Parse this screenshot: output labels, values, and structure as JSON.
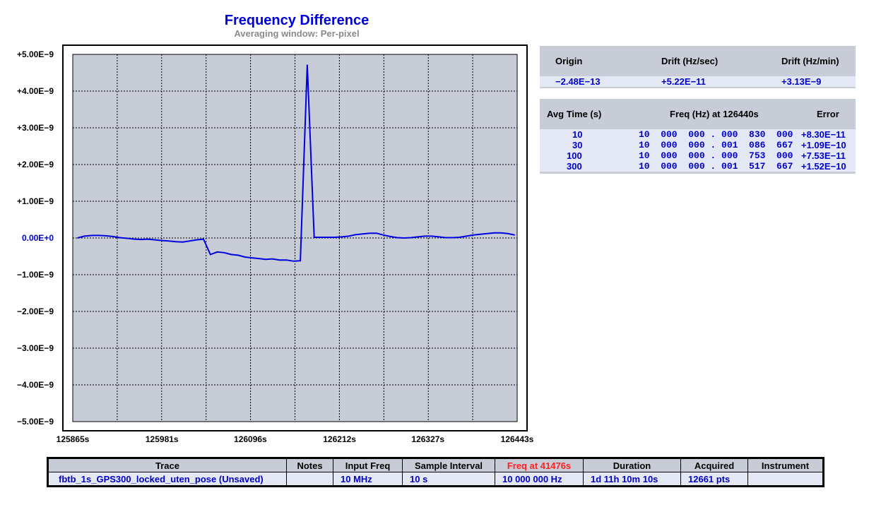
{
  "chart_data": {
    "type": "line",
    "title": "Frequency Difference",
    "subtitle": "Averaging window: Per-pixel",
    "xlabel": "",
    "ylabel": "",
    "xlim": [
      125865,
      126443
    ],
    "ylim": [
      -5e-09,
      5e-09
    ],
    "grid": true,
    "x_ticks": [
      "125865s",
      "125981s",
      "126096s",
      "126212s",
      "126327s",
      "126443s"
    ],
    "y_ticks": [
      "+5.00E−9",
      "+4.00E−9",
      "+3.00E−9",
      "+2.00E−9",
      "+1.00E−9",
      "0.00E+0",
      "−1.00E−9",
      "−2.00E−9",
      "−3.00E−9",
      "−4.00E−9",
      "−5.00E−9"
    ],
    "y_tick_values": [
      5e-09,
      4e-09,
      3e-09,
      2e-09,
      1e-09,
      0,
      -1e-09,
      -2e-09,
      -3e-09,
      -4e-09,
      -5e-09
    ],
    "x_tick_values": [
      125865,
      125981,
      126096,
      126212,
      126327,
      126443
    ],
    "series": [
      {
        "color": "#0000e0",
        "x": [
          125871,
          125880,
          125890,
          125899,
          125908,
          125917,
          125926,
          125936,
          125945,
          125954,
          125963,
          125972,
          125981,
          125990,
          125999,
          126008,
          126017,
          126026,
          126035,
          126044,
          126053,
          126062,
          126071,
          126080,
          126089,
          126098,
          126107,
          126116,
          126125,
          126134,
          126143,
          126152,
          126161,
          126170,
          126179,
          126188,
          126197,
          126206,
          126215,
          126224,
          126233,
          126242,
          126251,
          126260,
          126269,
          126278,
          126287,
          126296,
          126305,
          126314,
          126323,
          126332,
          126341,
          126350,
          126359,
          126368,
          126377,
          126386,
          126395,
          126404,
          126413,
          126422,
          126431,
          126440
        ],
        "y": [
          0.0,
          5e-11,
          7e-11,
          7e-11,
          6e-11,
          4e-11,
          1e-11,
          -1e-11,
          -3e-11,
          -4e-11,
          -3e-11,
          -5e-11,
          -7e-11,
          -8e-11,
          -1e-10,
          -1.1e-10,
          -8e-11,
          -5e-11,
          -3e-11,
          -4.5e-10,
          -3.8e-10,
          -4e-10,
          -4.5e-10,
          -4.7e-10,
          -5.2e-10,
          -5.4e-10,
          -5.6e-10,
          -5.8e-10,
          -5.7e-10,
          -6e-10,
          -6e-10,
          -6.3e-10,
          -6.2e-10,
          4.72e-09,
          2e-11,
          2e-11,
          2e-11,
          2e-11,
          3e-11,
          5e-11,
          9e-11,
          1.1e-10,
          1.3e-10,
          1.3e-10,
          8e-11,
          4e-11,
          1e-11,
          0.0,
          1e-11,
          3e-11,
          5e-11,
          5e-11,
          3e-11,
          1e-11,
          1e-11,
          2e-11,
          5e-11,
          8e-11,
          1e-10,
          1.2e-10,
          1.4e-10,
          1.4e-10,
          1.2e-10,
          8e-11
        ]
      }
    ]
  },
  "drift_panel": {
    "headers": [
      "Origin",
      "Drift (Hz/sec)",
      "Drift (Hz/min)"
    ],
    "values": [
      "−2.48E−13",
      "+5.22E−11",
      "+3.13E−9"
    ]
  },
  "avg_panel": {
    "headers": [
      "Avg Time (s)",
      "Freq (Hz) at 126440s",
      "Error"
    ],
    "rows": [
      {
        "avg": "10",
        "freq": "10  000  000 . 000  830  000",
        "err": "+8.30E−11"
      },
      {
        "avg": "30",
        "freq": "10  000  000 . 001  086  667",
        "err": "+1.09E−10"
      },
      {
        "avg": "100",
        "freq": "10  000  000 . 000  753  000",
        "err": "+7.53E−11"
      },
      {
        "avg": "300",
        "freq": "10  000  000 . 001  517  667",
        "err": "+1.52E−10"
      }
    ]
  },
  "trace_table": {
    "headers": [
      "Trace",
      "Notes",
      "Input Freq",
      "Sample Interval",
      "Freq at 41476s",
      "Duration",
      "Acquired",
      "Instrument"
    ],
    "row": [
      "fbtb_1s_GPS300_locked_uten_pose  (Unsaved)",
      "",
      "10 MHz",
      "10 s",
      "10 000 000 Hz",
      "1d 11h 10m 10s",
      "12661 pts",
      ""
    ]
  }
}
